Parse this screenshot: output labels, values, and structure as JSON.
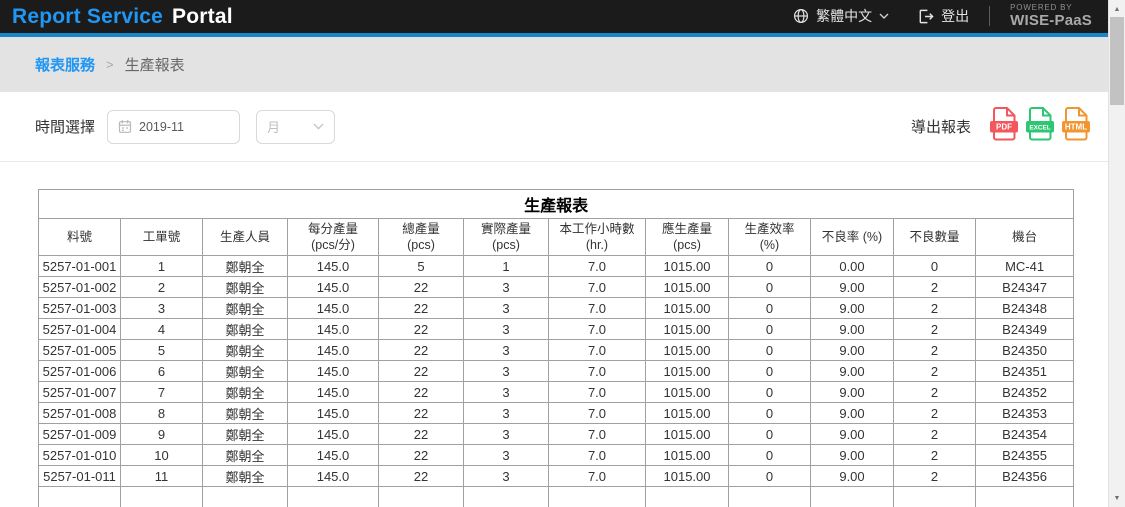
{
  "header": {
    "brand_primary": "Report Service",
    "brand_secondary": "Portal",
    "language": "繁體中文",
    "logout": "登出",
    "powered_by_line1": "POWERED BY",
    "powered_by_line2": "WISE-PaaS"
  },
  "breadcrumb": {
    "parent": "報表服務",
    "separator": ">",
    "current": "生產報表"
  },
  "filters": {
    "time_label": "時間選擇",
    "date_value": "2019-11",
    "period_value": "月",
    "export_label": "導出報表",
    "export_buttons": [
      {
        "label": "PDF",
        "color": "#f2575d"
      },
      {
        "label": "EXCEL",
        "color": "#2ec573"
      },
      {
        "label": "HTML",
        "color": "#f0952f"
      }
    ]
  },
  "table": {
    "title": "生產報表",
    "columns": [
      "料號",
      "工單號",
      "生產人員",
      "每分產量\n(pcs/分)",
      "總產量\n(pcs)",
      "實際產量\n(pcs)",
      "本工作小時數\n(hr.)",
      "應生產量\n(pcs)",
      "生產效率\n(%)",
      "不良率 (%)",
      "不良數量",
      "機台"
    ],
    "rows": [
      [
        "5257-01-001",
        "1",
        "鄭朝全",
        "145.0",
        "5",
        "1",
        "7.0",
        "1015.00",
        "0",
        "0.00",
        "0",
        "MC-41"
      ],
      [
        "5257-01-002",
        "2",
        "鄭朝全",
        "145.0",
        "22",
        "3",
        "7.0",
        "1015.00",
        "0",
        "9.00",
        "2",
        "B24347"
      ],
      [
        "5257-01-003",
        "3",
        "鄭朝全",
        "145.0",
        "22",
        "3",
        "7.0",
        "1015.00",
        "0",
        "9.00",
        "2",
        "B24348"
      ],
      [
        "5257-01-004",
        "4",
        "鄭朝全",
        "145.0",
        "22",
        "3",
        "7.0",
        "1015.00",
        "0",
        "9.00",
        "2",
        "B24349"
      ],
      [
        "5257-01-005",
        "5",
        "鄭朝全",
        "145.0",
        "22",
        "3",
        "7.0",
        "1015.00",
        "0",
        "9.00",
        "2",
        "B24350"
      ],
      [
        "5257-01-006",
        "6",
        "鄭朝全",
        "145.0",
        "22",
        "3",
        "7.0",
        "1015.00",
        "0",
        "9.00",
        "2",
        "B24351"
      ],
      [
        "5257-01-007",
        "7",
        "鄭朝全",
        "145.0",
        "22",
        "3",
        "7.0",
        "1015.00",
        "0",
        "9.00",
        "2",
        "B24352"
      ],
      [
        "5257-01-008",
        "8",
        "鄭朝全",
        "145.0",
        "22",
        "3",
        "7.0",
        "1015.00",
        "0",
        "9.00",
        "2",
        "B24353"
      ],
      [
        "5257-01-009",
        "9",
        "鄭朝全",
        "145.0",
        "22",
        "3",
        "7.0",
        "1015.00",
        "0",
        "9.00",
        "2",
        "B24354"
      ],
      [
        "5257-01-010",
        "10",
        "鄭朝全",
        "145.0",
        "22",
        "3",
        "7.0",
        "1015.00",
        "0",
        "9.00",
        "2",
        "B24355"
      ],
      [
        "5257-01-011",
        "11",
        "鄭朝全",
        "145.0",
        "22",
        "3",
        "7.0",
        "1015.00",
        "0",
        "9.00",
        "2",
        "B24356"
      ]
    ]
  },
  "colors": {
    "accent_blue": "#2196f3",
    "header_underline": "#1687cd",
    "header_background": "#1b1b1b",
    "breadcrumb_background": "#e3e3e3",
    "table_border": "#a0a0a0"
  }
}
